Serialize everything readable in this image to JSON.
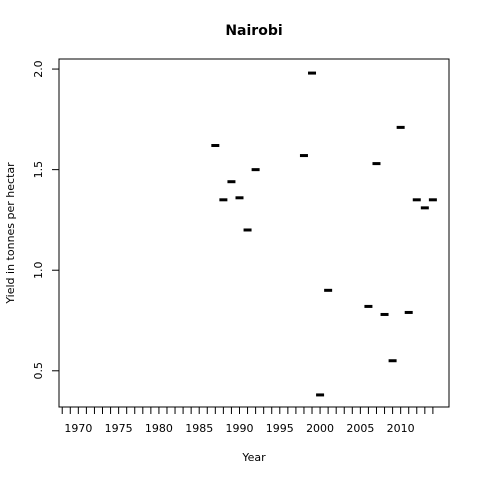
{
  "chart_data": {
    "type": "scatter",
    "title": "Nairobi",
    "xlabel": "Year",
    "ylabel": "Yield in tonnes per hectar",
    "xlim": [
      1967.6,
      2016.0
    ],
    "ylim": [
      0.32,
      2.05
    ],
    "xticks": [
      1968,
      1969,
      1970,
      1971,
      1972,
      1973,
      1974,
      1975,
      1976,
      1977,
      1978,
      1979,
      1980,
      1981,
      1982,
      1983,
      1984,
      1985,
      1986,
      1987,
      1988,
      1989,
      1990,
      1991,
      1992,
      1993,
      1994,
      1995,
      1996,
      1997,
      1998,
      1999,
      2000,
      2001,
      2002,
      2003,
      2004,
      2005,
      2006,
      2007,
      2008,
      2009,
      2010,
      2011,
      2012,
      2013,
      2014
    ],
    "xtick_labels": [
      {
        "value": 1970,
        "label": "1970"
      },
      {
        "value": 1975,
        "label": "1975"
      },
      {
        "value": 1980,
        "label": "1980"
      },
      {
        "value": 1985,
        "label": "1985"
      },
      {
        "value": 1990,
        "label": "1990"
      },
      {
        "value": 1995,
        "label": "1995"
      },
      {
        "value": 2000,
        "label": "2000"
      },
      {
        "value": 2005,
        "label": "2005"
      },
      {
        "value": 2010,
        "label": "2010"
      }
    ],
    "yticks": [
      {
        "value": 0.5,
        "label": "0.5"
      },
      {
        "value": 1.0,
        "label": "1.0"
      },
      {
        "value": 1.5,
        "label": "1.5"
      },
      {
        "value": 2.0,
        "label": "2.0"
      }
    ],
    "grid": false,
    "series": [
      {
        "x": [
          1987,
          1988,
          1989,
          1990,
          1991,
          1992,
          1998,
          1999,
          2000,
          2001,
          2006,
          2007,
          2008,
          2009,
          2010,
          2011,
          2012,
          2013,
          2014
        ],
        "y": [
          1.62,
          1.35,
          1.44,
          1.36,
          1.2,
          1.5,
          1.57,
          1.98,
          0.38,
          0.9,
          0.82,
          1.53,
          0.78,
          0.55,
          1.71,
          0.79,
          1.35,
          1.31,
          1.35
        ]
      }
    ]
  }
}
